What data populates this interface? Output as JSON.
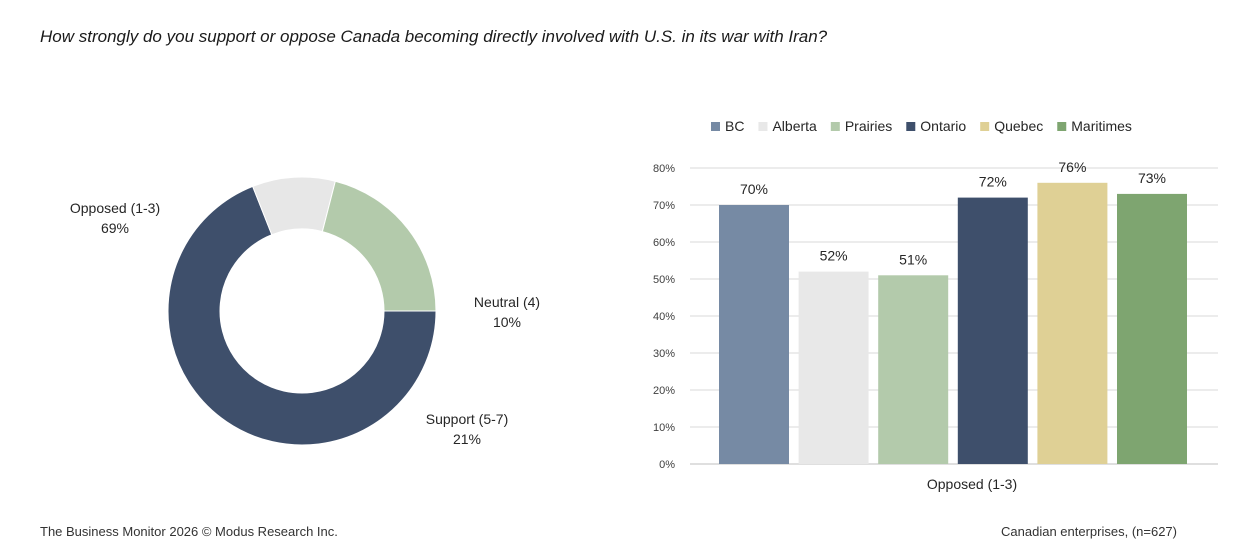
{
  "question": "How strongly do you support or oppose Canada becoming directly involved with U.S. in its war with Iran?",
  "footer": {
    "left": "The Business Monitor 2026 © Modus Research Inc.",
    "right": "Canadian enterprises, (n=627)"
  },
  "chart_data": [
    {
      "type": "pie",
      "variant": "donut",
      "slices": [
        {
          "label": "Opposed (1-3)",
          "value": 69,
          "value_label": "69%",
          "color": "#3e4f6b"
        },
        {
          "label": "Neutral (4)",
          "value": 10,
          "value_label": "10%",
          "color": "#e7e7e7"
        },
        {
          "label": "Support (5-7)",
          "value": 21,
          "value_label": "21%",
          "color": "#b3caab"
        }
      ]
    },
    {
      "type": "bar",
      "categories": [
        "Opposed (1-3)"
      ],
      "xlabel": "Opposed (1-3)",
      "ylim": [
        0,
        80
      ],
      "yticks": [
        "0%",
        "10%",
        "20%",
        "30%",
        "40%",
        "50%",
        "60%",
        "70%",
        "80%"
      ],
      "grid": true,
      "legend": "top",
      "series": [
        {
          "name": "BC",
          "values": [
            70
          ],
          "value_label": "70%",
          "color": "#768aa4"
        },
        {
          "name": "Alberta",
          "values": [
            52
          ],
          "value_label": "52%",
          "color": "#e8e8e8"
        },
        {
          "name": "Prairies",
          "values": [
            51
          ],
          "value_label": "51%",
          "color": "#b3caab"
        },
        {
          "name": "Ontario",
          "values": [
            72
          ],
          "value_label": "72%",
          "color": "#3e4f6b"
        },
        {
          "name": "Quebec",
          "values": [
            76
          ],
          "value_label": "76%",
          "color": "#dfd095"
        },
        {
          "name": "Maritimes",
          "values": [
            73
          ],
          "value_label": "73%",
          "color": "#7ea570"
        }
      ]
    }
  ]
}
